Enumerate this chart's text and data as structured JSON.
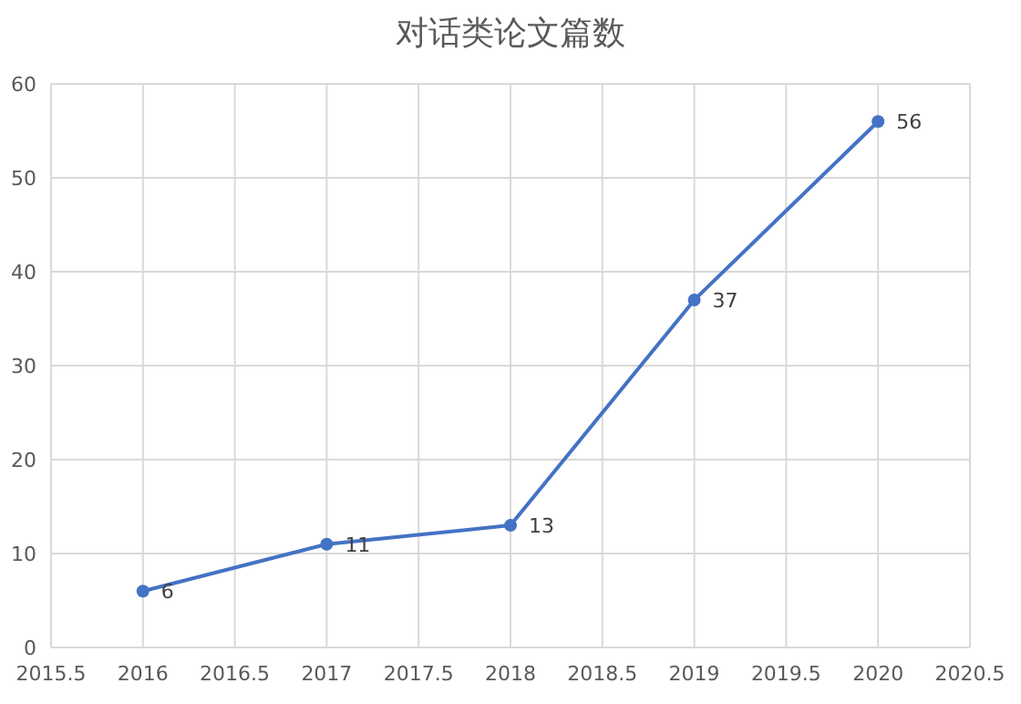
{
  "chart_data": {
    "type": "line",
    "title": "对话类论文篇数",
    "x": [
      2016,
      2017,
      2018,
      2019,
      2020
    ],
    "values": [
      6,
      11,
      13,
      37,
      56
    ],
    "color": "#4472c4",
    "marker": "circle",
    "line_style": "solid",
    "data_labels": true,
    "grid": true,
    "xlim": [
      2015.5,
      2020.5
    ],
    "ylim": [
      0,
      60
    ],
    "xticks": [
      2015.5,
      2016,
      2016.5,
      2017,
      2017.5,
      2018,
      2018.5,
      2019,
      2019.5,
      2020,
      2020.5
    ],
    "yticks": [
      0,
      10,
      20,
      30,
      40,
      50,
      60
    ]
  }
}
